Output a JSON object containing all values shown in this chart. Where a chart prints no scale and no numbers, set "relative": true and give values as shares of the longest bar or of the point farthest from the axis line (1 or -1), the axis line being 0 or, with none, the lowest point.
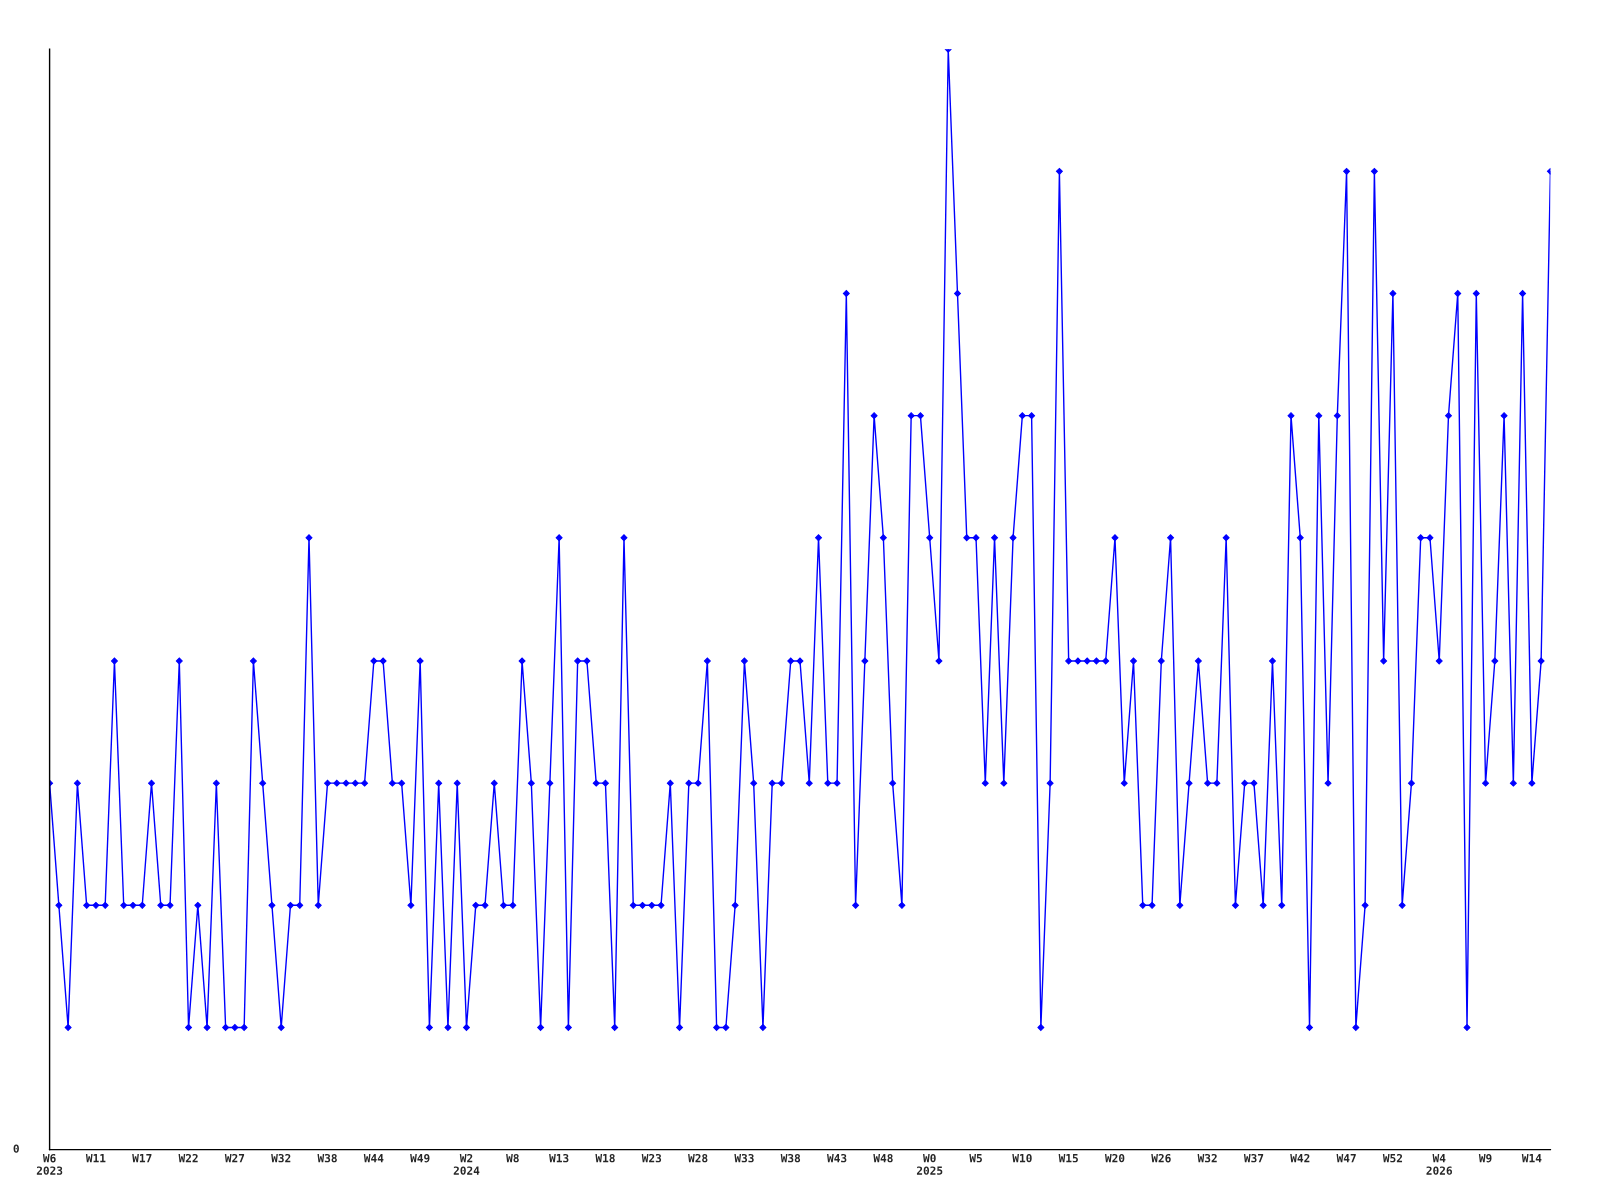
{
  "chart_data": {
    "type": "line",
    "relative": true,
    "marker": "diamond",
    "line_style": "solid",
    "grid": false,
    "legend": false,
    "annotations": [
      "0"
    ],
    "categories": [
      "W6\n2023",
      null,
      null,
      null,
      null,
      "W11",
      null,
      null,
      null,
      null,
      "W17",
      null,
      null,
      null,
      null,
      "W22",
      null,
      null,
      null,
      null,
      "W27",
      null,
      null,
      null,
      null,
      "W32",
      null,
      null,
      null,
      null,
      "W38",
      null,
      null,
      null,
      null,
      "W44",
      null,
      null,
      null,
      null,
      "W49",
      null,
      null,
      null,
      null,
      "W2\n2024",
      null,
      null,
      null,
      null,
      "W8",
      null,
      null,
      null,
      null,
      "W13",
      null,
      null,
      null,
      null,
      "W18",
      null,
      null,
      null,
      null,
      "W23",
      null,
      null,
      null,
      null,
      "W28",
      null,
      null,
      null,
      null,
      "W33",
      null,
      null,
      null,
      null,
      "W38",
      null,
      null,
      null,
      null,
      "W43",
      null,
      null,
      null,
      null,
      "W48",
      null,
      null,
      null,
      null,
      "W0\n2025",
      null,
      null,
      null,
      null,
      "W5",
      null,
      null,
      null,
      null,
      "W10",
      null,
      null,
      null,
      null,
      "W15",
      null,
      null,
      null,
      null,
      "W20",
      null,
      null,
      null,
      null,
      "W26",
      null,
      null,
      null,
      null,
      "W32",
      null,
      null,
      null,
      null,
      "W37",
      null,
      null,
      null,
      null,
      "W42",
      null,
      null,
      null,
      null,
      "W47",
      null,
      null,
      null,
      null,
      "W52",
      null,
      null,
      null,
      null,
      "W4\n2026",
      null,
      null,
      null,
      null,
      "W9",
      null,
      null,
      null,
      null,
      "W14",
      null,
      null
    ],
    "series": [
      {
        "color": "#0000ff",
        "values": [
          0.333,
          0.222,
          0.111,
          0.333,
          0.222,
          0.222,
          0.222,
          0.444,
          0.222,
          0.222,
          0.222,
          0.333,
          0.222,
          0.222,
          0.444,
          0.111,
          0.222,
          0.111,
          0.333,
          0.111,
          0.111,
          0.111,
          0.444,
          0.333,
          0.222,
          0.111,
          0.222,
          0.222,
          0.556,
          0.222,
          0.333,
          0.333,
          0.333,
          0.333,
          0.333,
          0.444,
          0.444,
          0.333,
          0.333,
          0.222,
          0.444,
          0.111,
          0.333,
          0.111,
          0.333,
          0.111,
          0.222,
          0.222,
          0.333,
          0.222,
          0.222,
          0.444,
          0.333,
          0.111,
          0.333,
          0.556,
          0.111,
          0.444,
          0.444,
          0.333,
          0.333,
          0.111,
          0.556,
          0.222,
          0.222,
          0.222,
          0.222,
          0.333,
          0.111,
          0.333,
          0.333,
          0.444,
          0.111,
          0.111,
          0.222,
          0.444,
          0.333,
          0.111,
          0.333,
          0.333,
          0.444,
          0.444,
          0.333,
          0.556,
          0.333,
          0.333,
          0.778,
          0.222,
          0.444,
          0.667,
          0.556,
          0.333,
          0.222,
          0.667,
          0.667,
          0.556,
          0.444,
          1,
          0.778,
          0.556,
          0.556,
          0.333,
          0.556,
          0.333,
          0.556,
          0.667,
          0.667,
          0.111,
          0.333,
          0.889,
          0.444,
          0.444,
          0.444,
          0.444,
          0.444,
          0.556,
          0.333,
          0.444,
          0.222,
          0.222,
          0.444,
          0.556,
          0.222,
          0.333,
          0.444,
          0.333,
          0.333,
          0.556,
          0.222,
          0.333,
          0.333,
          0.222,
          0.444,
          0.222,
          0.667,
          0.556,
          0.111,
          0.667,
          0.333,
          0.667,
          0.889,
          0.111,
          0.222,
          0.889,
          0.444,
          0.778,
          0.222,
          0.333,
          0.556,
          0.556,
          0.444,
          0.667,
          0.778,
          0.111,
          0.778,
          0.333,
          0.444,
          0.667,
          0.333,
          0.778,
          0.333,
          0.444,
          0.889
        ]
      }
    ]
  }
}
